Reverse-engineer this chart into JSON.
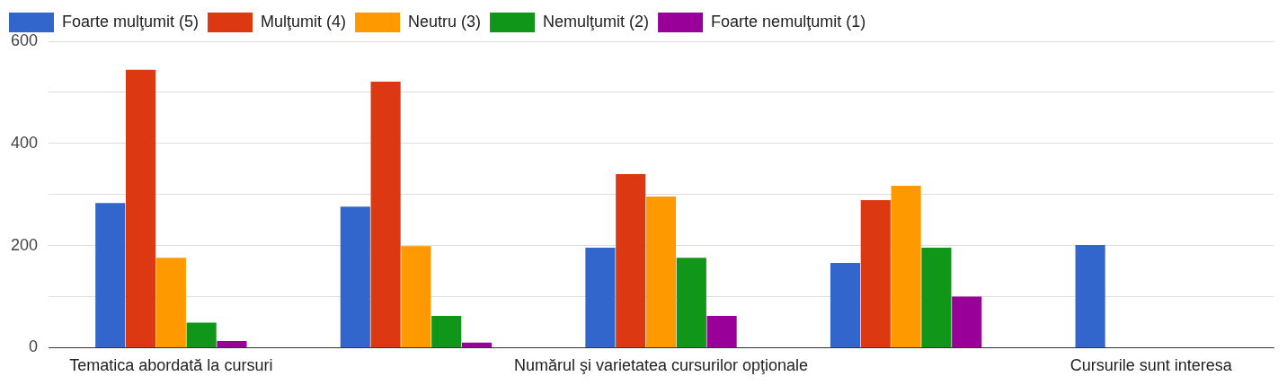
{
  "chart_data": {
    "type": "bar",
    "categories": [
      "Tematica abordată la cursuri",
      null,
      "Numărul şi varietatea cursurilor opţionale",
      null,
      "Cursurile sunt interesa"
    ],
    "series": [
      {
        "name": "Foarte mulţumit (5)",
        "color": "#3366cc",
        "values": [
          283,
          276,
          196,
          166,
          201
        ]
      },
      {
        "name": "Mulţumit (4)",
        "color": "#dc3912",
        "values": [
          544,
          521,
          340,
          289,
          null
        ]
      },
      {
        "name": "Neutru (3)",
        "color": "#ff9900",
        "values": [
          176,
          199,
          296,
          317,
          null
        ]
      },
      {
        "name": "Nemulţumit (2)",
        "color": "#109618",
        "values": [
          49,
          62,
          176,
          196,
          null
        ]
      },
      {
        "name": "Foarte nemulţumit (1)",
        "color": "#990099",
        "values": [
          13,
          10,
          62,
          100,
          null
        ]
      }
    ],
    "ylim": [
      0,
      600
    ],
    "yticks": [
      0,
      {
        "value": 100,
        "label": null
      },
      200,
      {
        "value": 300,
        "label": null
      },
      400,
      {
        "value": 500,
        "label": null
      },
      600
    ],
    "grid": "y",
    "legend": "top left"
  }
}
